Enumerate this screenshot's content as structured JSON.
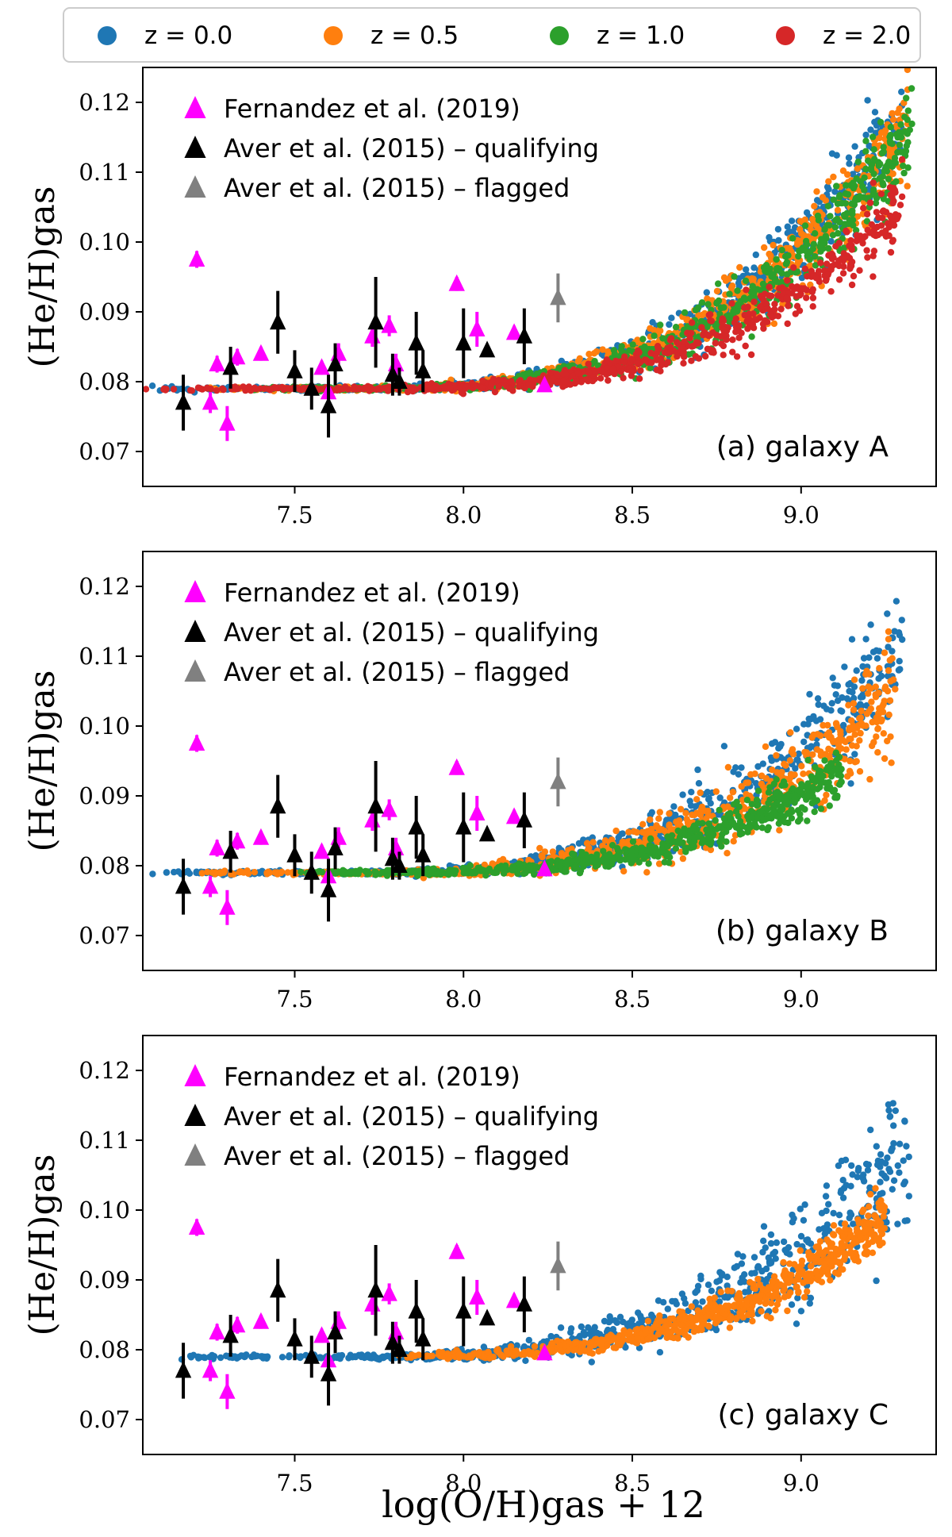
{
  "global_legend": [
    {
      "label": "z = 0.0",
      "color": "#1f77b4"
    },
    {
      "label": "z = 0.5",
      "color": "#ff7f0e"
    },
    {
      "label": "z = 1.0",
      "color": "#2ca02c"
    },
    {
      "label": "z = 2.0",
      "color": "#d62728"
    }
  ],
  "x_axis_label": "log(O/H)gas + 12",
  "y_axis_label": "(He/H)gas",
  "obs_legend": [
    {
      "label": "Fernandez et al. (2019)",
      "color": "#ff00ff"
    },
    {
      "label": "Aver et al. (2015) – qualifying",
      "color": "#000000"
    },
    {
      "label": "Aver et al. (2015) – flagged",
      "color": "#808080"
    }
  ],
  "chart_data": [
    {
      "type": "scatter",
      "title": "(a) galaxy A",
      "xlabel": "",
      "ylabel": "(He/H)gas",
      "xlim": [
        7.05,
        9.4
      ],
      "ylim": [
        0.065,
        0.125
      ],
      "xticks": [
        7.5,
        8.0,
        8.5,
        9.0
      ],
      "yticks": [
        0.07,
        0.08,
        0.09,
        0.1,
        0.11,
        0.12
      ],
      "xtick_labels": [
        "7.5",
        "8.0",
        "8.5",
        "9.0"
      ],
      "ytick_labels": [
        "0.07",
        "0.08",
        "0.09",
        "0.10",
        "0.11",
        "0.12"
      ],
      "series": [
        {
          "name": "z = 0.0",
          "xmin": 7.05,
          "xmax": 9.3,
          "ymax_end": 0.116,
          "spread": 0.007
        },
        {
          "name": "z = 0.5",
          "xmin": 7.2,
          "xmax": 9.32,
          "ymax_end": 0.114,
          "spread": 0.007
        },
        {
          "name": "z = 1.0",
          "xmin": 7.3,
          "xmax": 9.33,
          "ymax_end": 0.112,
          "spread": 0.006
        },
        {
          "name": "z = 2.0",
          "xmin": 7.05,
          "xmax": 9.3,
          "ymax_end": 0.105,
          "spread": 0.005
        }
      ]
    },
    {
      "type": "scatter",
      "title": "(b) galaxy B",
      "xlabel": "",
      "ylabel": "(He/H)gas",
      "xlim": [
        7.05,
        9.4
      ],
      "ylim": [
        0.065,
        0.125
      ],
      "xticks": [
        7.5,
        8.0,
        8.5,
        9.0
      ],
      "yticks": [
        0.07,
        0.08,
        0.09,
        0.1,
        0.11,
        0.12
      ],
      "xtick_labels": [
        "7.5",
        "8.0",
        "8.5",
        "9.0"
      ],
      "ytick_labels": [
        "0.07",
        "0.08",
        "0.09",
        "0.10",
        "0.11",
        "0.12"
      ],
      "series": [
        {
          "name": "z = 0.0",
          "xmin": 7.05,
          "xmax": 9.3,
          "ymax_end": 0.111,
          "spread": 0.008
        },
        {
          "name": "z = 0.5",
          "xmin": 7.2,
          "xmax": 9.28,
          "ymax_end": 0.106,
          "spread": 0.008
        },
        {
          "name": "z = 1.0",
          "xmin": 7.5,
          "xmax": 9.12,
          "ymax_end": 0.099,
          "spread": 0.004
        }
      ]
    },
    {
      "type": "scatter",
      "title": "(c) galaxy C",
      "xlabel": "log(O/H)gas + 12",
      "ylabel": "(He/H)gas",
      "xlim": [
        7.05,
        9.4
      ],
      "ylim": [
        0.065,
        0.125
      ],
      "xticks": [
        7.5,
        8.0,
        8.5,
        9.0
      ],
      "yticks": [
        0.07,
        0.08,
        0.09,
        0.1,
        0.11,
        0.12
      ],
      "xtick_labels": [
        "7.5",
        "8.0",
        "8.5",
        "9.0"
      ],
      "ytick_labels": [
        "0.07",
        "0.08",
        "0.09",
        "0.10",
        "0.11",
        "0.12"
      ],
      "series": [
        {
          "name": "z = 0.0",
          "xmin": 7.05,
          "xmax": 9.32,
          "ymax_end": 0.107,
          "spread": 0.009
        },
        {
          "name": "z = 0.5",
          "xmin": 7.8,
          "xmax": 9.25,
          "ymax_end": 0.1,
          "spread": 0.004
        }
      ]
    }
  ],
  "observations": {
    "fernandez_2019": [
      {
        "x": 7.21,
        "y": 0.0975,
        "err": 0.0012
      },
      {
        "x": 7.25,
        "y": 0.077,
        "err": 0.0015
      },
      {
        "x": 7.27,
        "y": 0.0825,
        "err": 0.0012
      },
      {
        "x": 7.3,
        "y": 0.074,
        "err": 0.0025
      },
      {
        "x": 7.33,
        "y": 0.0835,
        "err": 0.0012
      },
      {
        "x": 7.4,
        "y": 0.084,
        "err": 0.001
      },
      {
        "x": 7.58,
        "y": 0.082,
        "err": 0.001
      },
      {
        "x": 7.6,
        "y": 0.0785,
        "err": 0.002
      },
      {
        "x": 7.63,
        "y": 0.084,
        "err": 0.0015
      },
      {
        "x": 7.73,
        "y": 0.0865,
        "err": 0.0015
      },
      {
        "x": 7.78,
        "y": 0.088,
        "err": 0.0015
      },
      {
        "x": 7.8,
        "y": 0.0825,
        "err": 0.0015
      },
      {
        "x": 7.98,
        "y": 0.094,
        "err": 0.001
      },
      {
        "x": 8.04,
        "y": 0.0875,
        "err": 0.0025
      },
      {
        "x": 8.15,
        "y": 0.087,
        "err": 0.001
      },
      {
        "x": 8.24,
        "y": 0.0795,
        "err": 0.0005
      }
    ],
    "aver_2015_qualifying": [
      {
        "x": 7.17,
        "y": 0.077,
        "err": 0.004
      },
      {
        "x": 7.31,
        "y": 0.082,
        "err": 0.003
      },
      {
        "x": 7.45,
        "y": 0.0885,
        "err": 0.0045
      },
      {
        "x": 7.5,
        "y": 0.0815,
        "err": 0.003
      },
      {
        "x": 7.55,
        "y": 0.079,
        "err": 0.003
      },
      {
        "x": 7.6,
        "y": 0.0765,
        "err": 0.0045
      },
      {
        "x": 7.62,
        "y": 0.0825,
        "err": 0.003
      },
      {
        "x": 7.74,
        "y": 0.0885,
        "err": 0.0065
      },
      {
        "x": 7.79,
        "y": 0.081,
        "err": 0.003
      },
      {
        "x": 7.81,
        "y": 0.08,
        "err": 0.002
      },
      {
        "x": 7.86,
        "y": 0.0855,
        "err": 0.0045
      },
      {
        "x": 7.88,
        "y": 0.0815,
        "err": 0.003
      },
      {
        "x": 8.0,
        "y": 0.0855,
        "err": 0.005
      },
      {
        "x": 8.07,
        "y": 0.0845,
        "err": 0.0005
      },
      {
        "x": 8.18,
        "y": 0.0865,
        "err": 0.004
      }
    ],
    "aver_2015_flagged": [
      {
        "x": 8.28,
        "y": 0.092,
        "err": 0.0035
      }
    ]
  }
}
